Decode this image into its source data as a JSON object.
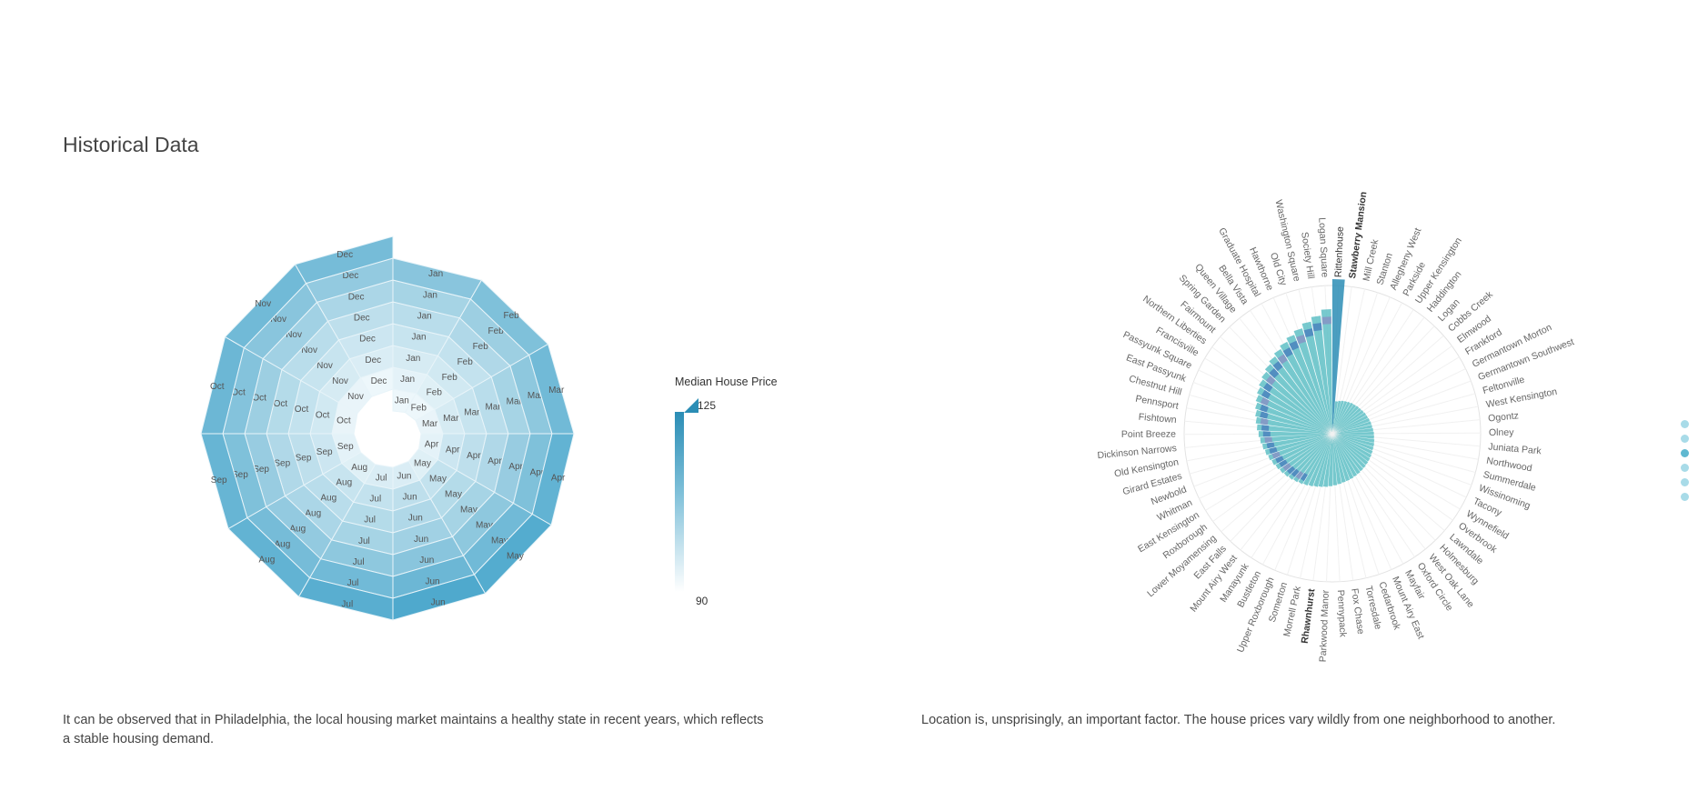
{
  "page": {
    "title": "Historical Data",
    "caption_left": "It can be observed that in Philadelphia, the local housing market maintains a healthy state in recent years, which reflects a stable housing demand.",
    "caption_right": "Location is, unsprisingly, an important factor. The house prices vary wildly from one neighborhood to another.",
    "nav_dots": 6,
    "active_dot": 2
  },
  "legend": {
    "title": "Median House Price",
    "max_label": "125",
    "min_label": "90",
    "color_high": "#2b8db5",
    "color_low": "#ffffff"
  },
  "chart_data": [
    {
      "type": "spiral-heatmap",
      "description_of_axes": "angle = month, ring = year (inner oldest to outer newest), color = median house price",
      "months": [
        "Jan",
        "Feb",
        "Mar",
        "Apr",
        "May",
        "Jun",
        "Jul",
        "Aug",
        "Sep",
        "Oct",
        "Nov",
        "Dec"
      ],
      "ring_count": 7,
      "color_range": [
        90,
        125
      ],
      "values": [
        [
          91,
          91,
          92,
          93,
          94,
          95,
          95,
          94,
          93,
          92,
          92,
          91
        ],
        [
          93,
          94,
          96,
          98,
          100,
          101,
          100,
          99,
          98,
          97,
          96,
          95
        ],
        [
          96,
          97,
          99,
          101,
          103,
          104,
          103,
          102,
          101,
          100,
          99,
          98
        ],
        [
          99,
          100,
          102,
          104,
          106,
          107,
          106,
          105,
          104,
          103,
          102,
          101
        ],
        [
          102,
          104,
          106,
          109,
          111,
          112,
          111,
          110,
          109,
          108,
          107,
          105
        ],
        [
          106,
          108,
          111,
          114,
          117,
          118,
          117,
          116,
          114,
          113,
          112,
          110
        ],
        [
          112,
          114,
          117,
          120,
          123,
          124,
          122,
          120,
          119,
          118,
          117,
          116
        ]
      ]
    },
    {
      "type": "radial-bar",
      "categories": [
        "Rittenhouse",
        "Stawberry Mansion",
        "Mill Creek",
        "Stanton",
        "Allegheny West",
        "Parkside",
        "Upper Kensington",
        "Haddington",
        "Logan",
        "Cobbs Creek",
        "Elmwood",
        "Frankford",
        "Germantown Morton",
        "Germantown Southwest",
        "Feltonville",
        "West Kensington",
        "Ogontz",
        "Olney",
        "Juniata Park",
        "Northwood",
        "Summerdale",
        "Wissinoming",
        "Tacony",
        "Wynnefield",
        "Overbrook",
        "Lawndale",
        "Holmesburg",
        "West Oak Lane",
        "Oxford Circle",
        "Mayfair",
        "Mount Airy East",
        "Cedarbrook",
        "Torresdale",
        "Fox Chase",
        "Pennypack",
        "Parkwood Manor",
        "Rhawnhurst",
        "Morrell Park",
        "Somerton",
        "Upper Roxborough",
        "Bustleton",
        "Manayunk",
        "Mount Airy West",
        "East Falls",
        "Lower Moyamensing",
        "Roxborough",
        "East Kensington",
        "Whitman",
        "Newbold",
        "Girard Estates",
        "Old Kensington",
        "Dickinson Narrows",
        "Point Breeze",
        "Fishtown",
        "Pennsport",
        "Chestnut Hill",
        "East Passyunk",
        "Passyunk Square",
        "Francisville",
        "Northern Liberties",
        "Fairmount",
        "Spring Garden",
        "Queen Village",
        "Bella Vista",
        "Graduate Hospital",
        "Hawthorne",
        "Old City",
        "Washington Square",
        "Society Hill",
        "Logan Square"
      ],
      "values": [
        380,
        42,
        45,
        48,
        50,
        52,
        54,
        55,
        57,
        58,
        60,
        62,
        63,
        65,
        67,
        68,
        70,
        72,
        73,
        75,
        77,
        78,
        80,
        82,
        84,
        86,
        88,
        90,
        92,
        94,
        96,
        98,
        100,
        103,
        106,
        109,
        112,
        115,
        118,
        122,
        126,
        130,
        134,
        138,
        142,
        146,
        150,
        155,
        160,
        165,
        170,
        175,
        180,
        186,
        192,
        198,
        205,
        212,
        220,
        228,
        236,
        245,
        255,
        265,
        276,
        288,
        300,
        315,
        330,
        350
      ],
      "colors": [
        "#5fbfc6",
        "#3a67b8",
        "#8e7fc2"
      ]
    }
  ]
}
